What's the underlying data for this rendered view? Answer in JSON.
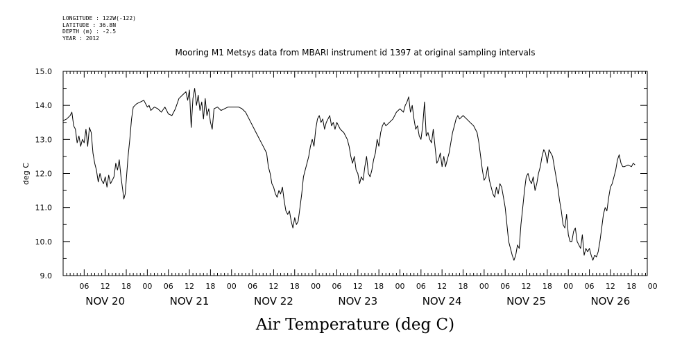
{
  "meta": {
    "longitude": "LONGITUDE : 122W(-122)",
    "latitude": "LATITUDE : 36.8N",
    "depth": "DEPTH (m) : -2.5",
    "year": "YEAR : 2012"
  },
  "chart_data": {
    "type": "line",
    "title": "Mooring M1 Metsys data from MBARI instrument id 1397 at original sampling intervals",
    "xlabel": "Air Temperature (deg C)",
    "ylabel": "deg C",
    "x_range_hours": [
      0,
      166.5
    ],
    "ylim": [
      9.0,
      15.0
    ],
    "y_ticks": [
      "9.0",
      "10.0",
      "11.0",
      "12.0",
      "13.0",
      "14.0",
      "15.0"
    ],
    "hour_ticks": [
      "06",
      "12",
      "18",
      "00",
      "06",
      "12",
      "18",
      "00",
      "06",
      "12",
      "18",
      "00",
      "06",
      "12",
      "18",
      "00",
      "06",
      "12",
      "18",
      "00",
      "06",
      "12",
      "18",
      "00",
      "06",
      "12",
      "18",
      "00"
    ],
    "day_labels": [
      "NOV 20",
      "NOV 21",
      "NOV 22",
      "NOV 23",
      "NOV 24",
      "NOV 25",
      "NOV 26"
    ],
    "grid": false,
    "series": [
      {
        "points": [
          [
            0,
            13.55
          ],
          [
            1,
            13.6
          ],
          [
            2,
            13.7
          ],
          [
            2.5,
            13.8
          ],
          [
            3,
            13.4
          ],
          [
            3.5,
            13.3
          ],
          [
            4,
            12.9
          ],
          [
            4.5,
            13.1
          ],
          [
            5,
            12.8
          ],
          [
            5.5,
            13.0
          ],
          [
            6,
            12.9
          ],
          [
            6.5,
            13.3
          ],
          [
            7,
            12.8
          ],
          [
            7.5,
            13.35
          ],
          [
            8,
            13.2
          ],
          [
            8.5,
            12.6
          ],
          [
            9,
            12.3
          ],
          [
            9.5,
            12.1
          ],
          [
            10,
            11.75
          ],
          [
            10.5,
            12.0
          ],
          [
            11,
            11.8
          ],
          [
            11.5,
            11.7
          ],
          [
            12,
            11.9
          ],
          [
            12.5,
            11.6
          ],
          [
            13,
            11.95
          ],
          [
            13.5,
            11.7
          ],
          [
            14,
            11.8
          ],
          [
            14.5,
            11.9
          ],
          [
            15,
            12.3
          ],
          [
            15.5,
            12.1
          ],
          [
            16,
            12.4
          ],
          [
            16.5,
            11.9
          ],
          [
            17,
            11.5
          ],
          [
            17.3,
            11.25
          ],
          [
            17.7,
            11.4
          ],
          [
            18.5,
            12.5
          ],
          [
            19,
            13.0
          ],
          [
            19.5,
            13.6
          ],
          [
            20,
            13.95
          ],
          [
            21,
            14.05
          ],
          [
            22,
            14.1
          ],
          [
            23,
            14.15
          ],
          [
            24,
            13.95
          ],
          [
            24.5,
            14.0
          ],
          [
            25,
            13.85
          ],
          [
            26,
            13.95
          ],
          [
            27,
            13.9
          ],
          [
            28,
            13.8
          ],
          [
            29,
            13.95
          ],
          [
            30,
            13.75
          ],
          [
            31,
            13.7
          ],
          [
            32,
            13.9
          ],
          [
            33,
            14.2
          ],
          [
            34,
            14.3
          ],
          [
            35,
            14.4
          ],
          [
            35.5,
            14.15
          ],
          [
            36,
            14.45
          ],
          [
            36.5,
            13.35
          ],
          [
            37,
            14.2
          ],
          [
            37.5,
            14.5
          ],
          [
            38,
            14.0
          ],
          [
            38.5,
            14.3
          ],
          [
            39,
            13.85
          ],
          [
            39.5,
            14.1
          ],
          [
            40,
            13.6
          ],
          [
            40.5,
            14.2
          ],
          [
            41,
            13.7
          ],
          [
            41.5,
            13.9
          ],
          [
            42,
            13.5
          ],
          [
            42.5,
            13.3
          ],
          [
            43,
            13.9
          ],
          [
            44,
            13.95
          ],
          [
            45,
            13.85
          ],
          [
            46,
            13.9
          ],
          [
            47,
            13.95
          ],
          [
            48,
            13.95
          ],
          [
            50,
            13.95
          ],
          [
            51,
            13.9
          ],
          [
            52,
            13.8
          ],
          [
            53,
            13.6
          ],
          [
            54,
            13.4
          ],
          [
            55,
            13.2
          ],
          [
            56,
            13.0
          ],
          [
            57,
            12.8
          ],
          [
            58,
            12.6
          ],
          [
            58.5,
            12.2
          ],
          [
            59,
            12.0
          ],
          [
            59.5,
            11.7
          ],
          [
            60,
            11.6
          ],
          [
            60.5,
            11.4
          ],
          [
            61,
            11.3
          ],
          [
            61.5,
            11.5
          ],
          [
            62,
            11.4
          ],
          [
            62.5,
            11.6
          ],
          [
            63,
            11.2
          ],
          [
            63.5,
            10.9
          ],
          [
            64,
            10.8
          ],
          [
            64.5,
            10.9
          ],
          [
            65,
            10.6
          ],
          [
            65.5,
            10.4
          ],
          [
            66,
            10.7
          ],
          [
            66.5,
            10.5
          ],
          [
            67,
            10.6
          ],
          [
            67.5,
            11.0
          ],
          [
            68,
            11.4
          ],
          [
            68.5,
            11.9
          ],
          [
            69,
            12.1
          ],
          [
            69.5,
            12.3
          ],
          [
            70,
            12.5
          ],
          [
            70.5,
            12.8
          ],
          [
            71,
            13.0
          ],
          [
            71.5,
            12.8
          ],
          [
            72,
            13.3
          ],
          [
            72.5,
            13.6
          ],
          [
            73,
            13.7
          ],
          [
            73.5,
            13.5
          ],
          [
            74,
            13.6
          ],
          [
            74.5,
            13.3
          ],
          [
            75,
            13.5
          ],
          [
            75.5,
            13.6
          ],
          [
            76,
            13.7
          ],
          [
            76.5,
            13.4
          ],
          [
            77,
            13.5
          ],
          [
            77.5,
            13.3
          ],
          [
            78,
            13.5
          ],
          [
            79,
            13.3
          ],
          [
            80,
            13.2
          ],
          [
            81,
            13.0
          ],
          [
            81.5,
            12.8
          ],
          [
            82,
            12.5
          ],
          [
            82.5,
            12.3
          ],
          [
            83,
            12.5
          ],
          [
            83.5,
            12.1
          ],
          [
            84,
            12.0
          ],
          [
            84.5,
            11.7
          ],
          [
            85,
            11.9
          ],
          [
            85.5,
            11.8
          ],
          [
            86,
            12.2
          ],
          [
            86.5,
            12.5
          ],
          [
            87,
            12.0
          ],
          [
            87.5,
            11.9
          ],
          [
            88,
            12.1
          ],
          [
            88.5,
            12.4
          ],
          [
            89,
            12.6
          ],
          [
            89.5,
            13.0
          ],
          [
            90,
            12.8
          ],
          [
            90.5,
            13.2
          ],
          [
            91,
            13.4
          ],
          [
            91.5,
            13.5
          ],
          [
            92,
            13.4
          ],
          [
            93,
            13.5
          ],
          [
            94,
            13.6
          ],
          [
            95,
            13.8
          ],
          [
            96,
            13.9
          ],
          [
            97,
            13.8
          ],
          [
            97.5,
            14.0
          ],
          [
            98,
            14.1
          ],
          [
            98.5,
            14.25
          ],
          [
            99,
            13.8
          ],
          [
            99.5,
            14.0
          ],
          [
            100,
            13.6
          ],
          [
            100.5,
            13.3
          ],
          [
            101,
            13.4
          ],
          [
            101.5,
            13.1
          ],
          [
            102,
            13.0
          ],
          [
            102.5,
            13.4
          ],
          [
            103,
            14.1
          ],
          [
            103.5,
            13.1
          ],
          [
            104,
            13.2
          ],
          [
            104.5,
            13.0
          ],
          [
            105,
            12.9
          ],
          [
            105.5,
            13.3
          ],
          [
            106,
            12.8
          ],
          [
            106.5,
            12.3
          ],
          [
            107,
            12.4
          ],
          [
            107.5,
            12.6
          ],
          [
            108,
            12.2
          ],
          [
            108.5,
            12.5
          ],
          [
            109,
            12.2
          ],
          [
            109.5,
            12.4
          ],
          [
            110,
            12.6
          ],
          [
            110.5,
            12.9
          ],
          [
            111,
            13.2
          ],
          [
            111.5,
            13.4
          ],
          [
            112,
            13.6
          ],
          [
            112.5,
            13.7
          ],
          [
            113,
            13.6
          ],
          [
            114,
            13.7
          ],
          [
            115,
            13.6
          ],
          [
            116,
            13.5
          ],
          [
            117,
            13.4
          ],
          [
            117.5,
            13.3
          ],
          [
            118,
            13.2
          ],
          [
            118.5,
            12.9
          ],
          [
            119,
            12.5
          ],
          [
            119.5,
            12.1
          ],
          [
            120,
            11.8
          ],
          [
            120.5,
            11.9
          ],
          [
            121,
            12.2
          ],
          [
            121.5,
            11.8
          ],
          [
            122,
            11.6
          ],
          [
            122.5,
            11.4
          ],
          [
            123,
            11.3
          ],
          [
            123.5,
            11.6
          ],
          [
            124,
            11.4
          ],
          [
            124.5,
            11.7
          ],
          [
            125,
            11.6
          ],
          [
            125.5,
            11.3
          ],
          [
            126,
            11.0
          ],
          [
            126.5,
            10.5
          ],
          [
            127,
            10.0
          ],
          [
            127.5,
            9.8
          ],
          [
            128,
            9.6
          ],
          [
            128.5,
            9.45
          ],
          [
            129,
            9.6
          ],
          [
            129.5,
            9.9
          ],
          [
            130,
            9.8
          ],
          [
            130.5,
            10.5
          ],
          [
            131,
            11.0
          ],
          [
            131.5,
            11.5
          ],
          [
            132,
            11.9
          ],
          [
            132.5,
            12.0
          ],
          [
            133,
            11.8
          ],
          [
            133.5,
            11.7
          ],
          [
            134,
            11.9
          ],
          [
            134.5,
            11.5
          ],
          [
            135,
            11.7
          ],
          [
            135.5,
            12.0
          ],
          [
            136,
            12.2
          ],
          [
            136.5,
            12.5
          ],
          [
            137,
            12.7
          ],
          [
            137.5,
            12.6
          ],
          [
            138,
            12.3
          ],
          [
            138.5,
            12.7
          ],
          [
            139,
            12.6
          ],
          [
            139.5,
            12.5
          ],
          [
            140,
            12.2
          ],
          [
            140.5,
            11.9
          ],
          [
            141,
            11.6
          ],
          [
            141.5,
            11.2
          ],
          [
            142,
            10.9
          ],
          [
            142.5,
            10.5
          ],
          [
            143,
            10.4
          ],
          [
            143.5,
            10.8
          ],
          [
            144,
            10.2
          ],
          [
            144.5,
            10.0
          ],
          [
            145,
            10.0
          ],
          [
            145.5,
            10.3
          ],
          [
            146,
            10.4
          ],
          [
            146.5,
            10.0
          ],
          [
            147,
            9.9
          ],
          [
            147.5,
            9.8
          ],
          [
            148,
            10.2
          ],
          [
            148.5,
            9.6
          ],
          [
            149,
            9.8
          ],
          [
            149.5,
            9.7
          ],
          [
            150,
            9.8
          ],
          [
            150.5,
            9.6
          ],
          [
            151,
            9.45
          ],
          [
            151.5,
            9.6
          ],
          [
            152,
            9.55
          ],
          [
            152.5,
            9.7
          ],
          [
            153,
            10.0
          ],
          [
            153.5,
            10.4
          ],
          [
            154,
            10.8
          ],
          [
            154.5,
            11.0
          ],
          [
            155,
            10.9
          ],
          [
            155.5,
            11.3
          ],
          [
            156,
            11.6
          ],
          [
            156.5,
            11.7
          ],
          [
            157,
            11.9
          ],
          [
            157.5,
            12.1
          ],
          [
            158,
            12.4
          ],
          [
            158.5,
            12.55
          ],
          [
            159,
            12.3
          ],
          [
            159.5,
            12.2
          ],
          [
            160,
            12.2
          ],
          [
            161,
            12.25
          ],
          [
            162,
            12.2
          ],
          [
            162.5,
            12.3
          ],
          [
            163,
            12.25
          ]
        ]
      }
    ]
  }
}
